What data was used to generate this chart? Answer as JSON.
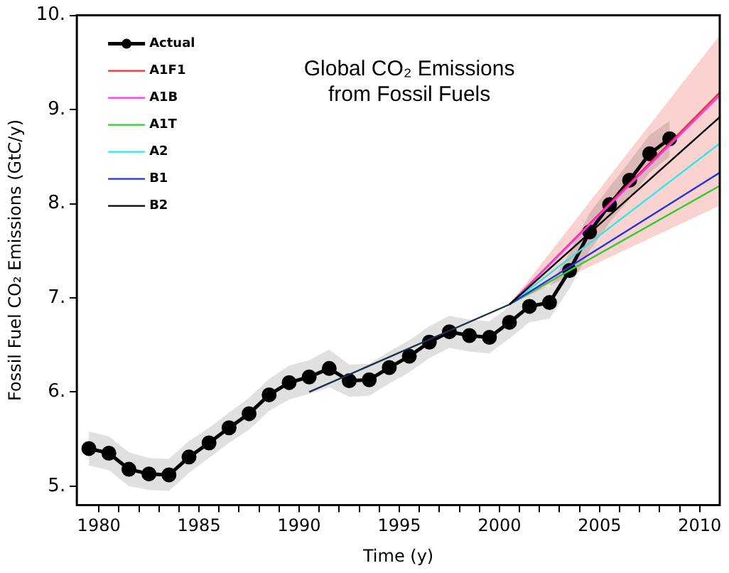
{
  "chart_data": {
    "type": "line",
    "title": "Global CO₂ Emissions from Fossil Fuels",
    "xlabel": "Time (y)",
    "ylabel": "Fossil Fuel CO₂ Emissions (GtC/y)",
    "xlim": [
      1978.9,
      2011
    ],
    "ylim": [
      4.8,
      10
    ],
    "xticks": [
      1980,
      {
        "value": 1981,
        "label": null
      },
      {
        "value": 1982,
        "label": null
      },
      {
        "value": 1983,
        "label": null
      },
      {
        "value": 1984,
        "label": null
      },
      1985,
      {
        "value": 1986,
        "label": null
      },
      {
        "value": 1987,
        "label": null
      },
      {
        "value": 1988,
        "label": null
      },
      {
        "value": 1989,
        "label": null
      },
      1990,
      {
        "value": 1991,
        "label": null
      },
      {
        "value": 1992,
        "label": null
      },
      {
        "value": 1993,
        "label": null
      },
      {
        "value": 1994,
        "label": null
      },
      1995,
      {
        "value": 1996,
        "label": null
      },
      {
        "value": 1997,
        "label": null
      },
      {
        "value": 1998,
        "label": null
      },
      {
        "value": 1999,
        "label": null
      },
      2000,
      {
        "value": 2001,
        "label": null
      },
      {
        "value": 2002,
        "label": null
      },
      {
        "value": 2003,
        "label": null
      },
      {
        "value": 2004,
        "label": null
      },
      2005,
      {
        "value": 2006,
        "label": null
      },
      {
        "value": 2007,
        "label": null
      },
      {
        "value": 2008,
        "label": null
      },
      {
        "value": 2009,
        "label": null
      },
      2010
    ],
    "yticks": [
      {
        "value": 5,
        "label": "5."
      },
      {
        "value": 6,
        "label": "6."
      },
      {
        "value": 7,
        "label": "7."
      },
      {
        "value": 8,
        "label": "8."
      },
      {
        "value": 9,
        "label": "9."
      },
      {
        "value": 10,
        "label": "10."
      }
    ],
    "grid": false,
    "legend": "top left",
    "series": [
      {
        "name": "Actual",
        "color": "#000000",
        "marker": "circle",
        "x": [
          1979.5,
          1980.5,
          1981.5,
          1982.5,
          1983.5,
          1984.5,
          1985.5,
          1986.5,
          1987.5,
          1988.5,
          1989.5,
          1990.5,
          1991.5,
          1992.5,
          1993.5,
          1994.5,
          1995.5,
          1996.5,
          1997.5,
          1998.5,
          1999.5,
          2000.5,
          2001.5,
          2002.5,
          2003.5,
          2004.5,
          2005.5,
          2006.5,
          2007.5,
          2008.5
        ],
        "values": [
          5.4,
          5.35,
          5.18,
          5.13,
          5.12,
          5.31,
          5.46,
          5.62,
          5.77,
          5.97,
          6.1,
          6.16,
          6.25,
          6.12,
          6.13,
          6.26,
          6.38,
          6.53,
          6.64,
          6.6,
          6.58,
          6.74,
          6.91,
          6.95,
          7.29,
          7.7,
          7.99,
          8.25,
          8.53,
          8.69
        ],
        "lower": [
          5.22,
          5.17,
          5.0,
          4.96,
          4.95,
          5.14,
          5.3,
          5.46,
          5.6,
          5.8,
          5.92,
          5.98,
          6.05,
          5.95,
          5.96,
          6.09,
          6.21,
          6.36,
          6.47,
          6.43,
          6.41,
          6.57,
          6.74,
          6.78,
          7.1,
          7.5,
          7.8,
          8.05,
          8.33,
          8.5
        ],
        "upper": [
          5.58,
          5.53,
          5.36,
          5.3,
          5.29,
          5.48,
          5.62,
          5.78,
          5.94,
          6.14,
          6.28,
          6.34,
          6.45,
          6.29,
          6.3,
          6.43,
          6.55,
          6.7,
          6.81,
          6.77,
          6.75,
          6.91,
          7.08,
          7.12,
          7.48,
          7.9,
          8.18,
          8.45,
          8.73,
          8.88
        ]
      },
      {
        "color": "#1f2f4f",
        "x": [
          1990.5,
          2000.5
        ],
        "values": [
          6.0,
          6.93
        ]
      },
      {
        "name": "A1F1",
        "color": "#e8322a",
        "x": [
          2000.5,
          2011
        ],
        "values": [
          6.93,
          9.18
        ],
        "lower": [
          6.93,
          7.98
        ],
        "upper": [
          6.93,
          9.79
        ]
      },
      {
        "name": "A1B",
        "color": "#ff33ff",
        "x": [
          2000.5,
          2011
        ],
        "values": [
          6.93,
          9.15
        ]
      },
      {
        "name": "A1T",
        "color": "#33cc33",
        "x": [
          2000.5,
          2011
        ],
        "values": [
          6.93,
          8.19
        ]
      },
      {
        "name": "A2",
        "color": "#33e6e6",
        "x": [
          2000.5,
          2011
        ],
        "values": [
          6.93,
          8.64
        ]
      },
      {
        "name": "B1",
        "color": "#2233dd",
        "x": [
          2000.5,
          2011
        ],
        "values": [
          6.93,
          8.33
        ]
      },
      {
        "name": "B2",
        "color": "#000000",
        "x": [
          2000.5,
          2011
        ],
        "values": [
          6.93,
          8.92
        ]
      }
    ]
  }
}
